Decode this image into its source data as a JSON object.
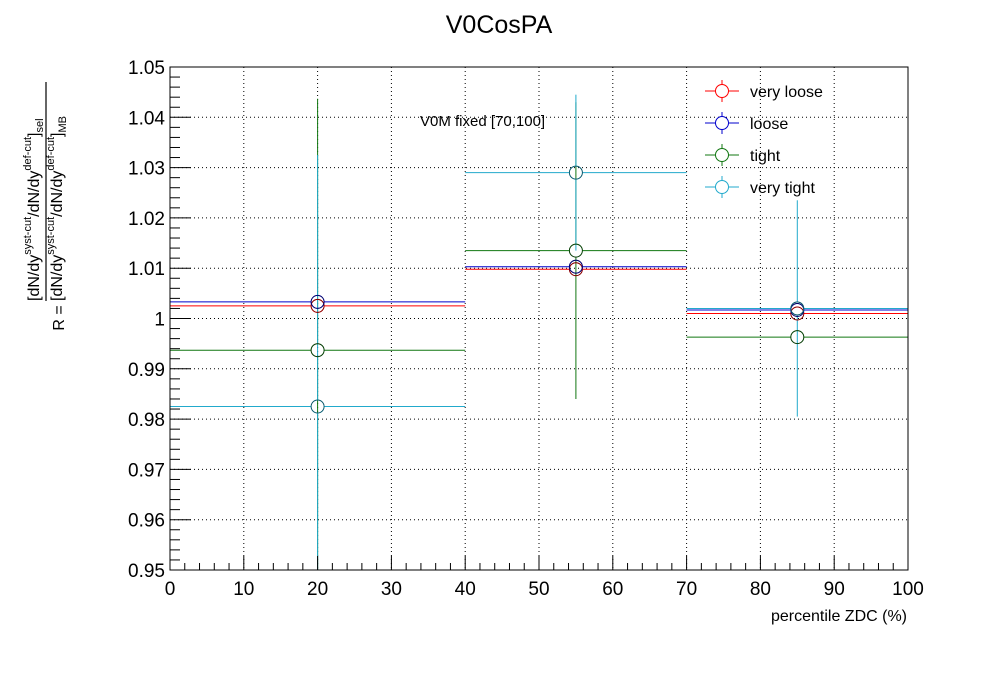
{
  "chart_data": {
    "type": "scatter",
    "title": "V0CosPA",
    "xlabel": "percentile ZDC (%)",
    "ylabel": {
      "prefix": "R = ",
      "numerator": "[dN/dy",
      "num_sup1": "syst-cut",
      "num_mid": "/dN/dy",
      "num_sup2": "def-cut",
      "num_close": "]",
      "num_sub": "sel",
      "denominator": "[dN/dy",
      "den_sup1": "syst-cut",
      "den_mid": "/dN/dy",
      "den_sup2": "def-cut",
      "den_close": "]",
      "den_sub": "MB"
    },
    "annotation": "V0M fixed [70,100]",
    "xlim": [
      0,
      100
    ],
    "ylim": [
      0.95,
      1.05
    ],
    "xticks": [
      0,
      10,
      20,
      30,
      40,
      50,
      60,
      70,
      80,
      90,
      100
    ],
    "xtick_labels": [
      "0",
      "10",
      "20",
      "30",
      "40",
      "50",
      "60",
      "70",
      "80",
      "90",
      "100"
    ],
    "yticks": [
      0.95,
      0.96,
      0.97,
      0.98,
      0.99,
      1.0,
      1.01,
      1.02,
      1.03,
      1.04,
      1.05
    ],
    "ytick_labels": [
      "0.95",
      "0.96",
      "0.97",
      "0.98",
      "0.99",
      "1",
      "1.01",
      "1.02",
      "1.03",
      "1.04",
      "1.05"
    ],
    "grid": true,
    "legend_position": "top-right",
    "bins": [
      [
        0,
        40
      ],
      [
        40,
        70
      ],
      [
        70,
        100
      ]
    ],
    "x": [
      20,
      55,
      85
    ],
    "series": [
      {
        "name": "very loose",
        "color": "#ff0000",
        "values": [
          1.0025,
          1.0098,
          1.001
        ],
        "errors": [
          0.0002,
          0.0002,
          0.0002
        ]
      },
      {
        "name": "loose",
        "color": "#0000cc",
        "values": [
          1.0033,
          1.0103,
          1.0017
        ],
        "errors": [
          0.0002,
          0.0002,
          0.0002
        ]
      },
      {
        "name": "tight",
        "color": "#117711",
        "values": [
          0.9937,
          1.0135,
          0.9963
        ],
        "errors": [
          0.05,
          0.0295,
          0.0002
        ]
      },
      {
        "name": "very tight",
        "color": "#22aacc",
        "values": [
          0.9825,
          1.029,
          1.002
        ],
        "errors": [
          0.05,
          0.0155,
          0.0215
        ]
      }
    ]
  }
}
